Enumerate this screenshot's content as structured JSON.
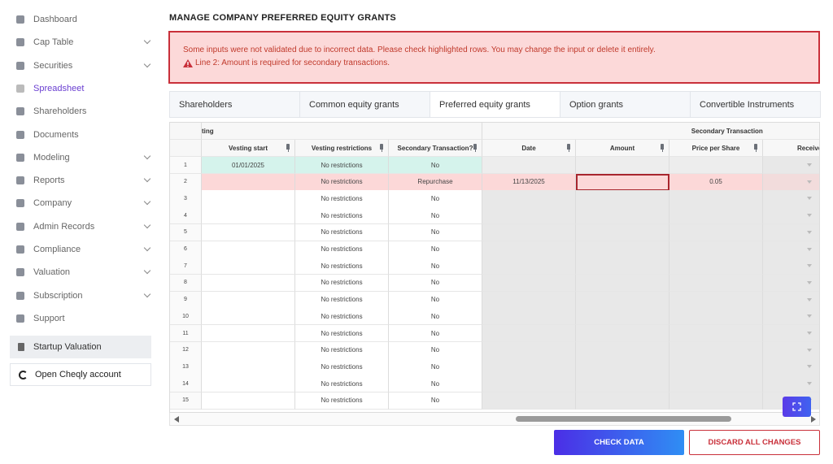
{
  "sidebar": {
    "items": [
      {
        "label": "Dashboard"
      },
      {
        "label": "Cap Table",
        "expandable": true
      },
      {
        "label": "Securities",
        "expandable": true
      },
      {
        "label": "Spreadsheet",
        "active": true
      },
      {
        "label": "Shareholders"
      },
      {
        "label": "Documents"
      },
      {
        "label": "Modeling",
        "expandable": true
      },
      {
        "label": "Reports",
        "expandable": true
      },
      {
        "label": "Company",
        "expandable": true
      },
      {
        "label": "Admin Records",
        "expandable": true
      },
      {
        "label": "Compliance",
        "expandable": true
      },
      {
        "label": "Valuation",
        "expandable": true
      },
      {
        "label": "Subscription",
        "expandable": true
      },
      {
        "label": "Support"
      }
    ],
    "startup_valuation": "Startup Valuation",
    "open_account": "Open Cheqly account"
  },
  "header": {
    "title": "MANAGE COMPANY PREFERRED EQUITY GRANTS"
  },
  "alert": {
    "message": "Some inputs were not validated due to incorrect data. Please check highlighted rows. You may change the input or delete it entirely.",
    "error": "Line 2: Amount is required for secondary transactions."
  },
  "tabs": [
    {
      "label": "Shareholders"
    },
    {
      "label": "Common equity grants"
    },
    {
      "label": "Preferred equity grants",
      "active": true
    },
    {
      "label": "Option grants"
    },
    {
      "label": "Convertible Instruments"
    }
  ],
  "grid": {
    "group_headers": [
      "ting",
      "Secondary Transaction"
    ],
    "columns": [
      {
        "key": "vesting_start",
        "label": "Vesting start",
        "pinned": true
      },
      {
        "key": "vesting_restrictions",
        "label": "Vesting restrictions",
        "pinned": true
      },
      {
        "key": "secondary",
        "label": "Secondary Transaction?",
        "pinned": true
      },
      {
        "key": "date",
        "label": "Date",
        "pinned": true
      },
      {
        "key": "amount",
        "label": "Amount",
        "pinned": true
      },
      {
        "key": "price",
        "label": "Price per Share",
        "pinned": true
      },
      {
        "key": "receive",
        "label": "Receive"
      }
    ],
    "rows": [
      {
        "n": 1,
        "vesting_start": "01/01/2025",
        "vesting_restrictions": "No restrictions",
        "secondary": "No",
        "highlight": "#d5f3ec"
      },
      {
        "n": 2,
        "vesting_restrictions": "No restrictions",
        "secondary": "Repurchase",
        "date": "11/13/2025",
        "price": 0.05,
        "highlight": "#fcd8d8",
        "error_cell": "amount"
      },
      {
        "n": 3,
        "vesting_restrictions": "No restrictions",
        "secondary": "No"
      },
      {
        "n": 4,
        "vesting_restrictions": "No restrictions",
        "secondary": "No"
      },
      {
        "n": 5,
        "vesting_restrictions": "No restrictions",
        "secondary": "No"
      },
      {
        "n": 6,
        "vesting_restrictions": "No restrictions",
        "secondary": "No"
      },
      {
        "n": 7,
        "vesting_restrictions": "No restrictions",
        "secondary": "No"
      },
      {
        "n": 8,
        "vesting_restrictions": "No restrictions",
        "secondary": "No"
      },
      {
        "n": 9,
        "vesting_restrictions": "No restrictions",
        "secondary": "No"
      },
      {
        "n": 10,
        "vesting_restrictions": "No restrictions",
        "secondary": "No"
      },
      {
        "n": 11,
        "vesting_restrictions": "No restrictions",
        "secondary": "No"
      },
      {
        "n": 12,
        "vesting_restrictions": "No restrictions",
        "secondary": "No"
      },
      {
        "n": 13,
        "vesting_restrictions": "No restrictions",
        "secondary": "No"
      },
      {
        "n": 14,
        "vesting_restrictions": "No restrictions",
        "secondary": "No"
      },
      {
        "n": 15,
        "vesting_restrictions": "No restrictions",
        "secondary": "No"
      }
    ]
  },
  "buttons": {
    "check": "CHECK DATA",
    "discard": "DISCARD ALL CHANGES"
  }
}
